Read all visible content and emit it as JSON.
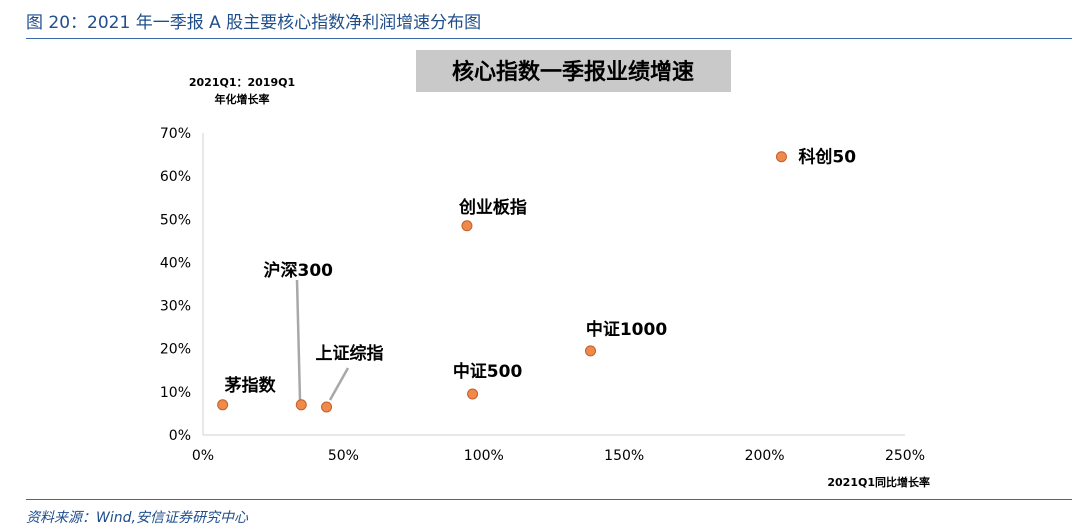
{
  "figure": {
    "title": "图 20：2021 年一季报 A 股主要核心指数净利润增速分布图",
    "source": "资料来源：Wind,安信证券研究中心"
  },
  "chart_data": {
    "type": "scatter",
    "title": "核心指数一季报业绩增速",
    "xlabel": "2021Q1同比增长率",
    "ylabel_line1": "2021Q1：2019Q1",
    "ylabel_line2": "年化增长率",
    "xlim": [
      0,
      2.5
    ],
    "ylim": [
      0,
      0.7
    ],
    "x_ticks": [
      "0%",
      "50%",
      "100%",
      "150%",
      "200%",
      "250%"
    ],
    "y_ticks": [
      "0%",
      "10%",
      "20%",
      "30%",
      "40%",
      "50%",
      "60%",
      "70%"
    ],
    "grid": false,
    "marker_color": "#f08a4b",
    "marker_edge": "#c0602a",
    "points": [
      {
        "name": "茅指数",
        "x": 0.07,
        "y": 0.07
      },
      {
        "name": "沪深300",
        "x": 0.35,
        "y": 0.07
      },
      {
        "name": "上证综指",
        "x": 0.44,
        "y": 0.065
      },
      {
        "name": "创业板指",
        "x": 0.94,
        "y": 0.485
      },
      {
        "name": "中证500",
        "x": 0.96,
        "y": 0.095
      },
      {
        "name": "中证1000",
        "x": 1.38,
        "y": 0.195
      },
      {
        "name": "科创50",
        "x": 2.06,
        "y": 0.645
      }
    ]
  }
}
